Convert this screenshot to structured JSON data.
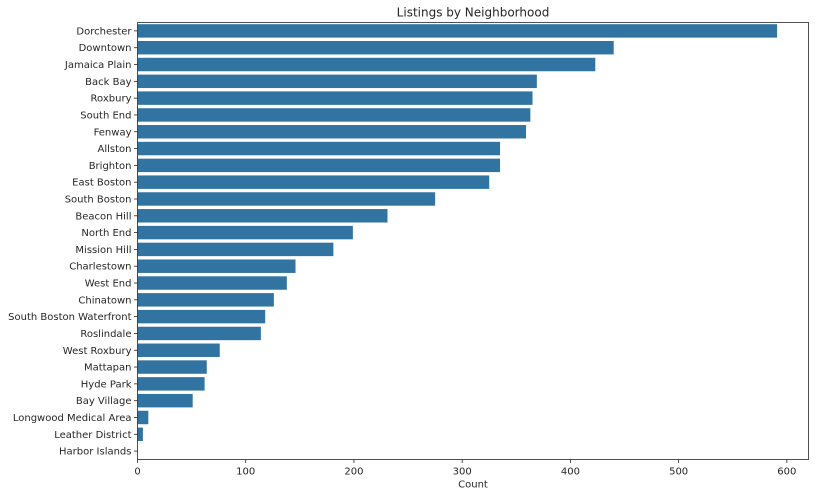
{
  "chart_data": {
    "type": "bar",
    "orientation": "horizontal",
    "title": "Listings by Neighborhood",
    "xlabel": "Count",
    "ylabel": "",
    "xlim": [
      0,
      620
    ],
    "xticks": [
      0,
      100,
      200,
      300,
      400,
      500,
      600
    ],
    "grid": false,
    "bar_color": "#3274a1",
    "categories": [
      "Dorchester",
      "Downtown",
      "Jamaica Plain",
      "Back Bay",
      "Roxbury",
      "South End",
      "Fenway",
      "Allston",
      "Brighton",
      "East Boston",
      "South Boston",
      "Beacon Hill",
      "North End",
      "Mission Hill",
      "Charlestown",
      "West End",
      "Chinatown",
      "South Boston Waterfront",
      "Roslindale",
      "West Roxbury",
      "Mattapan",
      "Hyde Park",
      "Bay Village",
      "Longwood Medical Area",
      "Leather District",
      "Harbor Islands"
    ],
    "values": [
      591,
      440,
      423,
      369,
      365,
      363,
      359,
      335,
      335,
      325,
      275,
      231,
      199,
      181,
      146,
      138,
      126,
      118,
      114,
      76,
      64,
      62,
      51,
      10,
      5,
      0
    ]
  }
}
